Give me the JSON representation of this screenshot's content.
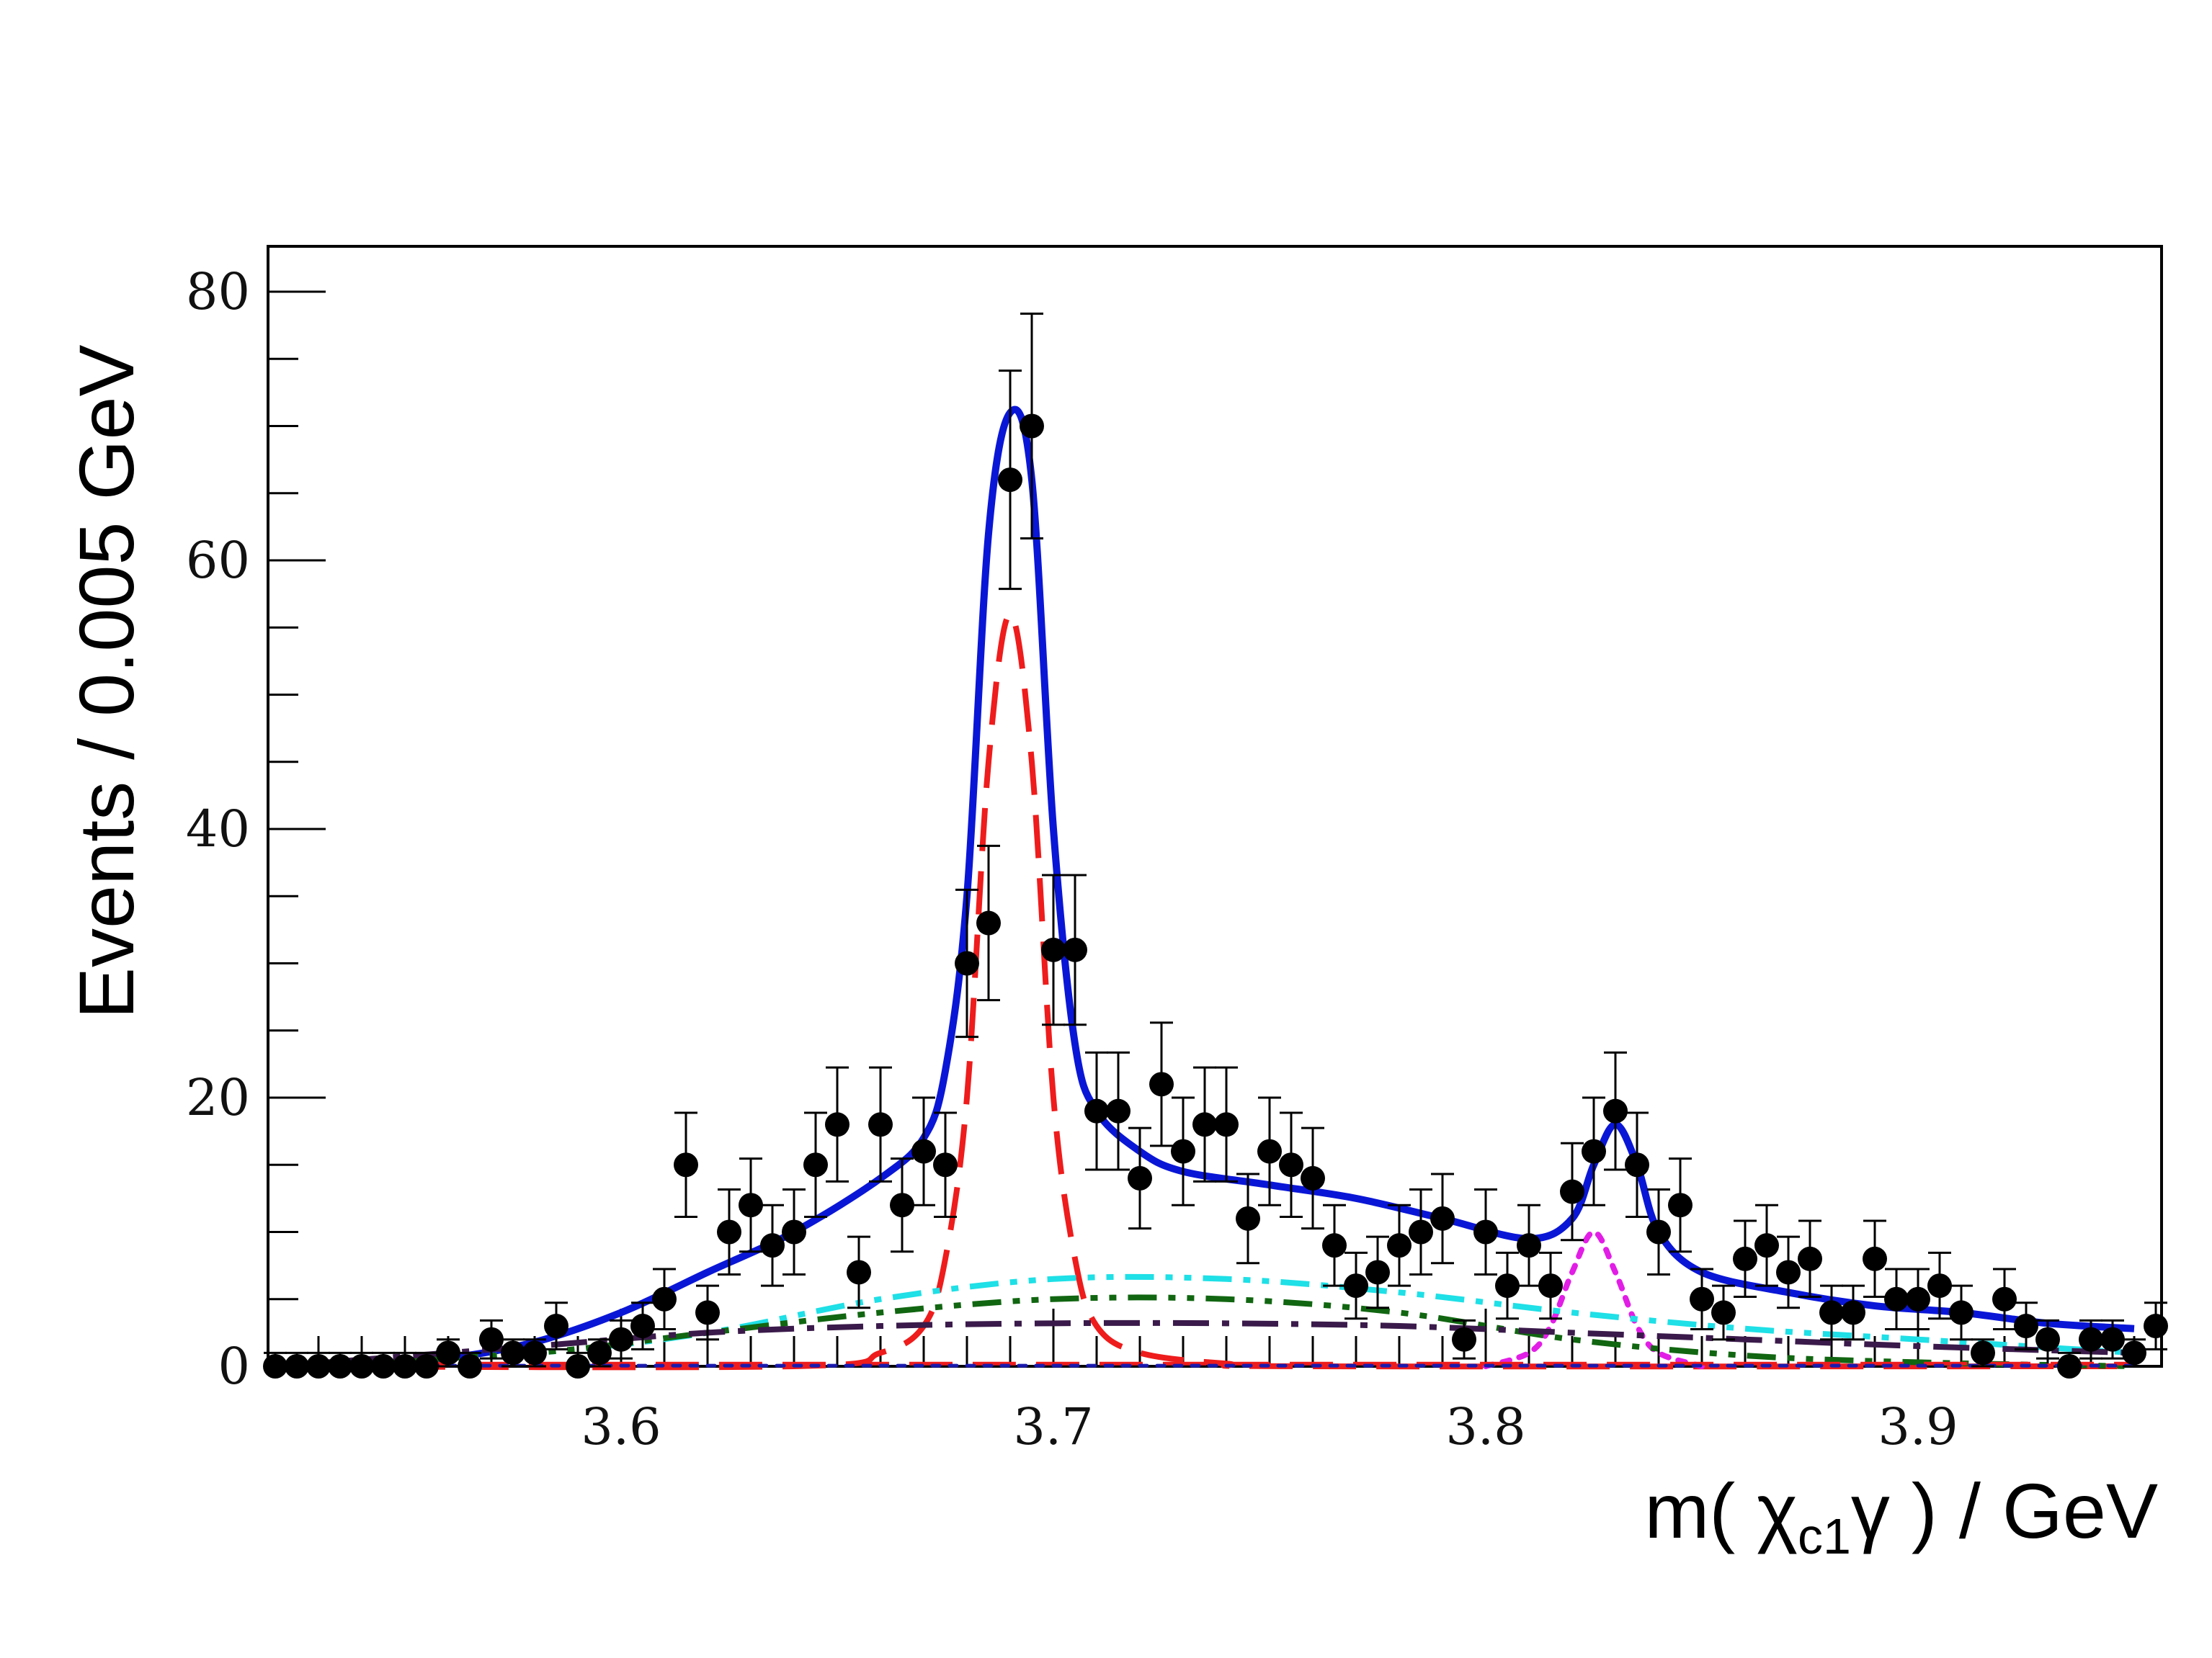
{
  "chart_data": {
    "type": "scatter",
    "xlabel": "m( χc1γ ) / GeV",
    "xlabel_parts": {
      "prefix": "m( ",
      "chi": "χ",
      "sub": "c1",
      "gamma": "γ",
      "suffix": " ) / GeV"
    },
    "ylabel": "Events / 0.005 GeV",
    "xlim": [
      3.52,
      3.95
    ],
    "ylim": [
      0,
      83
    ],
    "x_ticks": [
      3.6,
      3.7,
      3.8,
      3.9
    ],
    "x_tick_labels": [
      "3.6",
      "3.7",
      "3.8",
      "3.9"
    ],
    "y_ticks": [
      0,
      20,
      40,
      60,
      80
    ],
    "y_tick_labels": [
      "0",
      "20",
      "40",
      "60",
      "80"
    ],
    "grid": false,
    "series": [
      {
        "kind": "data-points-with-errors",
        "color": "#000000",
        "points": [
          [
            3.52,
            0
          ],
          [
            3.525,
            0
          ],
          [
            3.53,
            0
          ],
          [
            3.535,
            0
          ],
          [
            3.54,
            0
          ],
          [
            3.545,
            0
          ],
          [
            3.55,
            0
          ],
          [
            3.555,
            0
          ],
          [
            3.56,
            1
          ],
          [
            3.565,
            0
          ],
          [
            3.57,
            2
          ],
          [
            3.575,
            1
          ],
          [
            3.58,
            1
          ],
          [
            3.585,
            3
          ],
          [
            3.59,
            0
          ],
          [
            3.595,
            1
          ],
          [
            3.6,
            2
          ],
          [
            3.605,
            3
          ],
          [
            3.61,
            5
          ],
          [
            3.615,
            15
          ],
          [
            3.62,
            4
          ],
          [
            3.625,
            10
          ],
          [
            3.63,
            12
          ],
          [
            3.635,
            9
          ],
          [
            3.64,
            10
          ],
          [
            3.645,
            15
          ],
          [
            3.65,
            18
          ],
          [
            3.655,
            7
          ],
          [
            3.66,
            18
          ],
          [
            3.665,
            12
          ],
          [
            3.67,
            16
          ],
          [
            3.675,
            15
          ],
          [
            3.68,
            30
          ],
          [
            3.685,
            33
          ],
          [
            3.69,
            66
          ],
          [
            3.695,
            70
          ],
          [
            3.7,
            31
          ],
          [
            3.705,
            31
          ],
          [
            3.71,
            19
          ],
          [
            3.715,
            19
          ],
          [
            3.72,
            14
          ],
          [
            3.725,
            21
          ],
          [
            3.73,
            16
          ],
          [
            3.735,
            18
          ],
          [
            3.74,
            18
          ],
          [
            3.745,
            11
          ],
          [
            3.75,
            16
          ],
          [
            3.755,
            15
          ],
          [
            3.76,
            14
          ],
          [
            3.765,
            9
          ],
          [
            3.77,
            6
          ],
          [
            3.775,
            7
          ],
          [
            3.78,
            9
          ],
          [
            3.785,
            10
          ],
          [
            3.79,
            11
          ],
          [
            3.795,
            2
          ],
          [
            3.8,
            10
          ],
          [
            3.805,
            6
          ],
          [
            3.81,
            9
          ],
          [
            3.815,
            6
          ],
          [
            3.82,
            13
          ],
          [
            3.825,
            16
          ],
          [
            3.83,
            19
          ],
          [
            3.835,
            15
          ],
          [
            3.84,
            10
          ],
          [
            3.845,
            12
          ],
          [
            3.85,
            5
          ],
          [
            3.855,
            4
          ],
          [
            3.86,
            8
          ],
          [
            3.865,
            9
          ],
          [
            3.87,
            7
          ],
          [
            3.875,
            8
          ],
          [
            3.88,
            4
          ],
          [
            3.885,
            4
          ],
          [
            3.89,
            8
          ],
          [
            3.895,
            5
          ],
          [
            3.9,
            5
          ],
          [
            3.905,
            6
          ],
          [
            3.91,
            4
          ],
          [
            3.915,
            1
          ],
          [
            3.92,
            5
          ],
          [
            3.925,
            3
          ],
          [
            3.93,
            2
          ],
          [
            3.935,
            0
          ],
          [
            3.94,
            2
          ],
          [
            3.945,
            2
          ],
          [
            3.95,
            1
          ],
          [
            3.955,
            3
          ]
        ]
      },
      {
        "kind": "line",
        "style": "solid",
        "color": "#0a16d6",
        "points": [
          [
            3.52,
            0
          ],
          [
            3.54,
            0.1
          ],
          [
            3.56,
            0.6
          ],
          [
            3.58,
            1.8
          ],
          [
            3.6,
            4
          ],
          [
            3.62,
            7
          ],
          [
            3.64,
            10
          ],
          [
            3.66,
            14
          ],
          [
            3.67,
            17
          ],
          [
            3.675,
            22
          ],
          [
            3.68,
            35
          ],
          [
            3.685,
            62
          ],
          [
            3.69,
            71
          ],
          [
            3.695,
            66
          ],
          [
            3.7,
            40
          ],
          [
            3.705,
            24
          ],
          [
            3.71,
            19
          ],
          [
            3.72,
            16
          ],
          [
            3.73,
            14.5
          ],
          [
            3.75,
            13.5
          ],
          [
            3.77,
            12.5
          ],
          [
            3.79,
            11
          ],
          [
            3.81,
            9.5
          ],
          [
            3.82,
            11
          ],
          [
            3.825,
            15
          ],
          [
            3.83,
            18
          ],
          [
            3.835,
            15
          ],
          [
            3.84,
            10
          ],
          [
            3.85,
            7
          ],
          [
            3.87,
            5.5
          ],
          [
            3.89,
            4.5
          ],
          [
            3.91,
            4
          ],
          [
            3.93,
            3.2
          ],
          [
            3.95,
            2.8
          ]
        ]
      },
      {
        "kind": "line",
        "style": "dashed",
        "color": "#ee1c1c",
        "points": [
          [
            3.52,
            0
          ],
          [
            3.64,
            0
          ],
          [
            3.66,
            1
          ],
          [
            3.67,
            3
          ],
          [
            3.675,
            8
          ],
          [
            3.68,
            20
          ],
          [
            3.685,
            45
          ],
          [
            3.69,
            56
          ],
          [
            3.695,
            45
          ],
          [
            3.7,
            20
          ],
          [
            3.705,
            8
          ],
          [
            3.71,
            3
          ],
          [
            3.72,
            1
          ],
          [
            3.74,
            0.2
          ],
          [
            3.76,
            0
          ],
          [
            3.95,
            0
          ]
        ]
      },
      {
        "kind": "line",
        "style": "dotted",
        "color": "#e21ee6",
        "points": [
          [
            3.8,
            0
          ],
          [
            3.81,
            1
          ],
          [
            3.815,
            3
          ],
          [
            3.82,
            7
          ],
          [
            3.825,
            10
          ],
          [
            3.83,
            7
          ],
          [
            3.835,
            3
          ],
          [
            3.84,
            1
          ],
          [
            3.85,
            0
          ]
        ]
      },
      {
        "kind": "line",
        "style": "dash-dot-dot",
        "color": "#1ee0e6",
        "points": [
          [
            3.52,
            0
          ],
          [
            3.58,
            1
          ],
          [
            3.62,
            2.5
          ],
          [
            3.66,
            5
          ],
          [
            3.7,
            6.5
          ],
          [
            3.74,
            6.5
          ],
          [
            3.78,
            5.5
          ],
          [
            3.82,
            4
          ],
          [
            3.86,
            2.8
          ],
          [
            3.9,
            2
          ],
          [
            3.95,
            1
          ]
        ]
      },
      {
        "kind": "line",
        "style": "dash-dot-dot",
        "color": "#116611",
        "points": [
          [
            3.52,
            0
          ],
          [
            3.58,
            1
          ],
          [
            3.62,
            2.5
          ],
          [
            3.66,
            4
          ],
          [
            3.7,
            5
          ],
          [
            3.74,
            5
          ],
          [
            3.78,
            4
          ],
          [
            3.82,
            2
          ],
          [
            3.86,
            0.8
          ],
          [
            3.9,
            0.3
          ],
          [
            3.95,
            0
          ]
        ]
      },
      {
        "kind": "line",
        "style": "dash-dot",
        "color": "#3a1a4a",
        "points": [
          [
            3.52,
            0
          ],
          [
            3.58,
            1.5
          ],
          [
            3.62,
            2.5
          ],
          [
            3.66,
            3
          ],
          [
            3.7,
            3.2
          ],
          [
            3.74,
            3.2
          ],
          [
            3.78,
            3
          ],
          [
            3.82,
            2.5
          ],
          [
            3.86,
            2
          ],
          [
            3.9,
            1.5
          ],
          [
            3.95,
            1
          ]
        ]
      },
      {
        "kind": "line",
        "style": "dashed",
        "color": "#ee1c1c",
        "width_class": "thin",
        "points": [
          [
            3.52,
            0.2
          ],
          [
            3.95,
            0.2
          ]
        ]
      },
      {
        "kind": "line",
        "style": "dotted",
        "color": "#1a1ab0",
        "width_class": "thin",
        "points": [
          [
            3.52,
            0.05
          ],
          [
            3.95,
            0.05
          ]
        ]
      }
    ]
  }
}
